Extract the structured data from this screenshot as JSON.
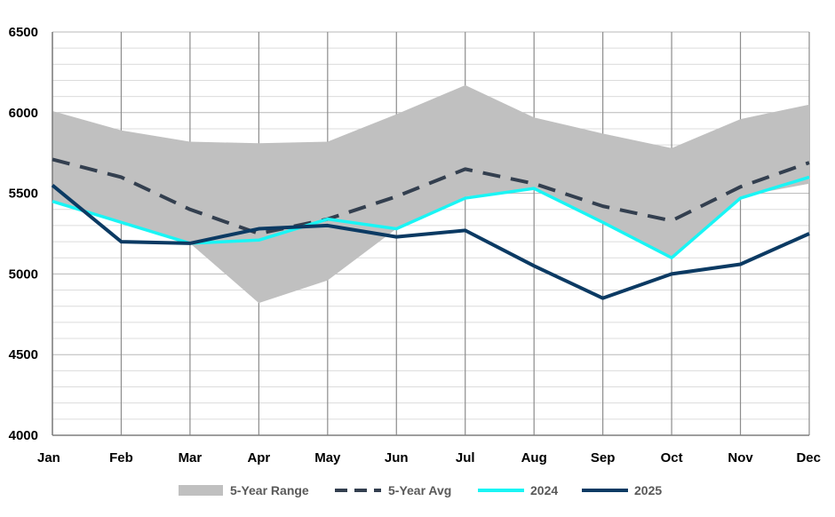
{
  "chart_data": {
    "type": "line",
    "title": "",
    "xlabel": "",
    "ylabel": "",
    "categories": [
      "Jan",
      "Feb",
      "Mar",
      "Apr",
      "May",
      "Jun",
      "Jul",
      "Aug",
      "Sep",
      "Oct",
      "Nov",
      "Dec"
    ],
    "ylim": [
      4000,
      6500
    ],
    "yticks": [
      4000,
      4500,
      5000,
      5500,
      6000,
      6500
    ],
    "grid": true,
    "legend_position": "bottom",
    "range": {
      "name": "5-Year Range",
      "color": "#c0c0c0",
      "min": [
        5450,
        5320,
        5190,
        4820,
        4960,
        5280,
        5480,
        5530,
        5320,
        5110,
        5480,
        5560
      ],
      "max": [
        6010,
        5890,
        5820,
        5810,
        5820,
        5990,
        6170,
        5970,
        5870,
        5780,
        5960,
        6050
      ]
    },
    "series": [
      {
        "name": "5-Year Avg",
        "color": "#333f4f",
        "style": "dashed",
        "values": [
          5710,
          5600,
          5400,
          5250,
          5340,
          5480,
          5650,
          5560,
          5420,
          5330,
          5540,
          5690
        ]
      },
      {
        "name": "2024",
        "color": "#19f5f5",
        "style": "solid",
        "values": [
          5450,
          5320,
          5190,
          5210,
          5340,
          5280,
          5470,
          5530,
          5320,
          5100,
          5470,
          5600
        ]
      },
      {
        "name": "2025",
        "color": "#0b3a63",
        "style": "solid",
        "values": [
          5550,
          5200,
          5190,
          5280,
          5300,
          5230,
          5270,
          5050,
          4850,
          5000,
          5060,
          5250
        ]
      }
    ]
  }
}
